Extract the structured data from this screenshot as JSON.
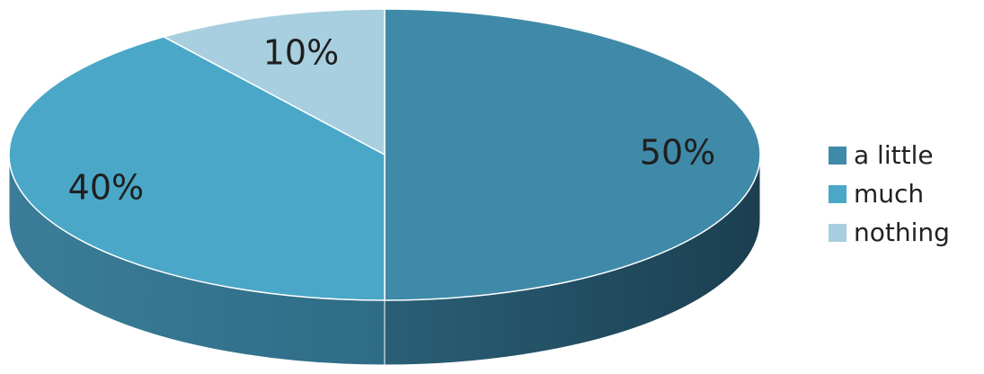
{
  "chart_data": {
    "type": "pie",
    "categories": [
      "a little",
      "much",
      "nothing"
    ],
    "values": [
      50,
      40,
      10
    ],
    "data_labels": [
      "50%",
      "40%",
      "10%"
    ],
    "legend_placement": "right",
    "colors": {
      "a little": {
        "top": "#3f8aa8",
        "side": "#2a6c86",
        "side_dark": "#1f4f63"
      },
      "much": {
        "top": "#4aa7c8",
        "side": "#3a87a3",
        "side_dark": "#2e6d85"
      },
      "nothing": {
        "top": "#a8cfdf",
        "side": "#86b2c4",
        "side_dark": "#6f97a8"
      }
    }
  }
}
